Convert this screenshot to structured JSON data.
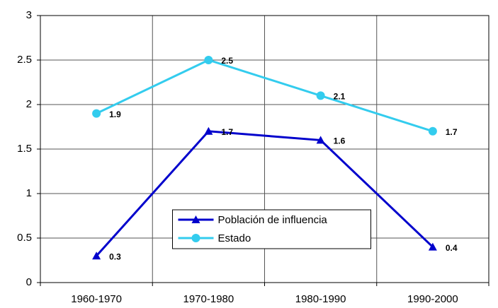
{
  "chart_data": {
    "type": "line",
    "categories": [
      "1960-1970",
      "1970-1980",
      "1980-1990",
      "1990-2000"
    ],
    "series": [
      {
        "name": "Población de influencia",
        "color": "#0000cc",
        "marker": "triangle",
        "values": [
          0.3,
          1.7,
          1.6,
          0.4
        ]
      },
      {
        "name": "Estado",
        "color": "#33ccee",
        "marker": "circle",
        "values": [
          1.9,
          2.5,
          2.1,
          1.7
        ]
      }
    ],
    "ylim": [
      0,
      3
    ],
    "yticks": [
      0,
      0.5,
      1,
      1.5,
      2,
      2.5,
      3
    ],
    "grid": true,
    "legend_position": "lower center"
  }
}
